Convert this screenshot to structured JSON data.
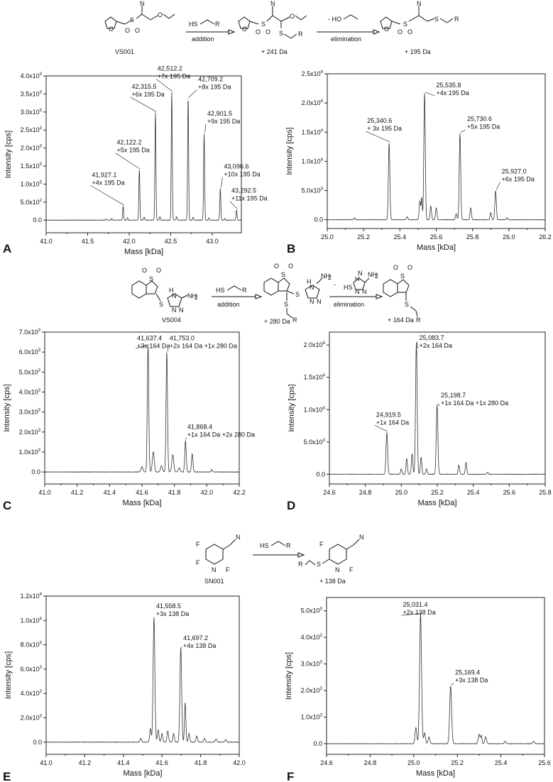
{
  "schemes": [
    {
      "id": "vs001",
      "compound": "VS001",
      "thiol_label": "HS",
      "r_label": "R",
      "step1_label": "addition",
      "step2_reagent": "- HO",
      "step2_label": "elimination",
      "adduct_mass": "+ 241 Da",
      "final_mass": "+ 195 Da"
    },
    {
      "id": "vs004",
      "compound": "VS004",
      "thiol_label": "HS",
      "r_label": "R",
      "step1_label": "addition",
      "step2_reagent": "HS",
      "step2_label": "elimination",
      "adduct_mass": "+ 280 Da",
      "final_mass": "+ 164 Da"
    },
    {
      "id": "sn001",
      "compound": "SN001",
      "thiol_label": "HS",
      "r_label": "R",
      "final_mass": "+ 138 Da"
    }
  ],
  "chart_data": [
    {
      "panel": "A",
      "type": "line",
      "xlabel": "Mass [kDa]",
      "ylabel": "Intensity [cps]",
      "xlim": [
        41.0,
        43.35
      ],
      "ylim": [
        -350,
        4000
      ],
      "xticks": [
        41.0,
        41.5,
        42.0,
        42.5,
        43.0
      ],
      "xtick_labels": [
        "41.0",
        "41.5",
        "42.0",
        "42.5",
        "43.0"
      ],
      "yticks": [
        0,
        500,
        1000,
        1500,
        2000,
        2500,
        3000,
        3500,
        4000
      ],
      "ytick_labels": [
        "0.0",
        "5.0x10",
        "1.0x10",
        "1.5x10",
        "2.0x10",
        "2.5x10",
        "3.0x10",
        "3.5x10",
        "4.0x10"
      ],
      "ytick_exponents": [
        "",
        "2",
        "3",
        "3",
        "3",
        "3",
        "3",
        "3",
        "3"
      ],
      "peaks": [
        {
          "x": 41.927,
          "y": 380,
          "w": 0.006
        },
        {
          "x": 42.122,
          "y": 1380,
          "w": 0.006
        },
        {
          "x": 42.3155,
          "y": 2970,
          "w": 0.006
        },
        {
          "x": 42.512,
          "y": 3530,
          "w": 0.006
        },
        {
          "x": 42.709,
          "y": 3370,
          "w": 0.006
        },
        {
          "x": 42.9015,
          "y": 2380,
          "w": 0.006
        },
        {
          "x": 43.0966,
          "y": 860,
          "w": 0.006
        },
        {
          "x": 43.2925,
          "y": 270,
          "w": 0.006
        },
        {
          "x": 41.72,
          "y": 30,
          "w": 0.006
        },
        {
          "x": 41.79,
          "y": 40,
          "w": 0.006
        },
        {
          "x": 41.98,
          "y": 60,
          "w": 0.006
        },
        {
          "x": 42.18,
          "y": 80,
          "w": 0.006
        },
        {
          "x": 42.37,
          "y": 90,
          "w": 0.006
        },
        {
          "x": 42.57,
          "y": 90,
          "w": 0.006
        },
        {
          "x": 42.77,
          "y": 80,
          "w": 0.006
        },
        {
          "x": 42.96,
          "y": 60,
          "w": 0.006
        },
        {
          "x": 43.15,
          "y": 40,
          "w": 0.006
        }
      ],
      "annotations": [
        {
          "lines": [
            "41,927.1",
            "+4x 195 Da"
          ],
          "x": 41.927,
          "y": 380,
          "tx": 41.55,
          "ty": 1200
        },
        {
          "lines": [
            "42,122.2",
            "+5x 195 Da"
          ],
          "x": 42.122,
          "y": 1380,
          "tx": 41.85,
          "ty": 2100
        },
        {
          "lines": [
            "42,315.5",
            "+6x 195 Da"
          ],
          "x": 42.3155,
          "y": 2970,
          "tx": 42.03,
          "ty": 3650
        },
        {
          "lines": [
            "42,512.2",
            "+7x 195 Da"
          ],
          "x": 42.512,
          "y": 3530,
          "tx": 42.34,
          "ty": 4150
        },
        {
          "lines": [
            "42,709.2",
            "+8x 195 Da"
          ],
          "x": 42.709,
          "y": 3370,
          "tx": 42.83,
          "ty": 3850
        },
        {
          "lines": [
            "42,901.5",
            "+9x 195 Da"
          ],
          "x": 42.9015,
          "y": 2380,
          "tx": 42.94,
          "ty": 2900
        },
        {
          "lines": [
            "43,096.6",
            "+10x 195 Da"
          ],
          "x": 43.0966,
          "y": 860,
          "tx": 43.14,
          "ty": 1430
        },
        {
          "lines": [
            "43,292.5",
            "+11x 195 Da"
          ],
          "x": 43.2925,
          "y": 270,
          "tx": 43.23,
          "ty": 760
        }
      ]
    },
    {
      "panel": "B",
      "type": "line",
      "xlabel": "Mass [kDa]",
      "ylabel": "Intensity [cps]",
      "xlim": [
        25.0,
        26.2
      ],
      "ylim": [
        -1500,
        25000
      ],
      "xticks": [
        25.0,
        25.2,
        25.4,
        25.6,
        25.8,
        26.0,
        26.2
      ],
      "xtick_labels": [
        "25.0",
        "25.2",
        "25.4",
        "25.6",
        "25.8",
        "26.0",
        "26.2"
      ],
      "yticks": [
        0,
        5000,
        10000,
        15000,
        20000,
        25000
      ],
      "ytick_labels": [
        "0.0",
        "5.0x10",
        "1.0x10",
        "1.5x10",
        "2.0x10",
        "2.5x10"
      ],
      "ytick_exponents": [
        "",
        "3",
        "4",
        "4",
        "4",
        "4"
      ],
      "peaks": [
        {
          "x": 25.3406,
          "y": 13100,
          "w": 0.004
        },
        {
          "x": 25.5358,
          "y": 21600,
          "w": 0.004
        },
        {
          "x": 25.7306,
          "y": 14700,
          "w": 0.004
        },
        {
          "x": 25.927,
          "y": 4900,
          "w": 0.004
        },
        {
          "x": 25.15,
          "y": 300,
          "w": 0.004
        },
        {
          "x": 25.44,
          "y": 500,
          "w": 0.004
        },
        {
          "x": 25.51,
          "y": 3200,
          "w": 0.004
        },
        {
          "x": 25.52,
          "y": 3700,
          "w": 0.003
        },
        {
          "x": 25.57,
          "y": 2300,
          "w": 0.004
        },
        {
          "x": 25.6,
          "y": 2000,
          "w": 0.004
        },
        {
          "x": 25.71,
          "y": 1000,
          "w": 0.004
        },
        {
          "x": 25.79,
          "y": 2000,
          "w": 0.004
        },
        {
          "x": 25.9,
          "y": 1200,
          "w": 0.004
        },
        {
          "x": 25.99,
          "y": 300,
          "w": 0.004
        }
      ],
      "annotations": [
        {
          "lines": [
            "25,340.6",
            "+ 3x 195 Da"
          ],
          "x": 25.3406,
          "y": 13100,
          "tx": 25.22,
          "ty": 16600
        },
        {
          "lines": [
            "25,535.8",
            "+4x 195 Da"
          ],
          "x": 25.5358,
          "y": 21600,
          "tx": 25.6,
          "ty": 22700
        },
        {
          "lines": [
            "25,730.6",
            "+5x 195 Da"
          ],
          "x": 25.7306,
          "y": 14700,
          "tx": 25.77,
          "ty": 16900
        },
        {
          "lines": [
            "25,927.0",
            "+6x 195 Da"
          ],
          "x": 25.927,
          "y": 4900,
          "tx": 25.96,
          "ty": 7900
        }
      ]
    },
    {
      "panel": "C",
      "type": "line",
      "xlabel": "Mass [kDa]",
      "ylabel": "Intensity [cps]",
      "xlim": [
        41.0,
        42.2
      ],
      "ylim": [
        -600,
        7000
      ],
      "xticks": [
        41.0,
        41.2,
        41.4,
        41.6,
        41.8,
        42.0,
        42.2
      ],
      "xtick_labels": [
        "41.0",
        "41.2",
        "41.4",
        "41.6",
        "41.8",
        "42.0",
        "42.2"
      ],
      "yticks": [
        0,
        1000,
        2000,
        3000,
        4000,
        5000,
        6000,
        7000
      ],
      "ytick_labels": [
        "0.0",
        "1.0x10",
        "2.0x10",
        "3.0x10",
        "4.0x10",
        "5.0x10",
        "6.0x10",
        "7.0x10"
      ],
      "ytick_exponents": [
        "",
        "3",
        "3",
        "3",
        "3",
        "3",
        "3",
        "3"
      ],
      "peaks": [
        {
          "x": 41.6374,
          "y": 6300,
          "w": 0.0045
        },
        {
          "x": 41.753,
          "y": 5950,
          "w": 0.0045
        },
        {
          "x": 41.8684,
          "y": 1550,
          "w": 0.0045
        },
        {
          "x": 41.91,
          "y": 900,
          "w": 0.0045
        },
        {
          "x": 41.67,
          "y": 1000,
          "w": 0.006
        },
        {
          "x": 41.79,
          "y": 850,
          "w": 0.006
        },
        {
          "x": 41.6,
          "y": 250,
          "w": 0.006
        },
        {
          "x": 41.72,
          "y": 300,
          "w": 0.006
        },
        {
          "x": 41.83,
          "y": 200,
          "w": 0.006
        },
        {
          "x": 42.03,
          "y": 120,
          "w": 0.004
        }
      ],
      "annotations": [
        {
          "lines": [
            "41,637.4",
            "+3x 164 Da"
          ],
          "x": 41.6374,
          "y": 6300,
          "tx": 41.57,
          "ty": 6600
        },
        {
          "lines": [
            "41,753.0",
            "+2x 164 Da +1x 280 Da"
          ],
          "x": 41.753,
          "y": 5950,
          "tx": 41.77,
          "ty": 6600
        },
        {
          "lines": [
            "41,868.4",
            "+1x 164 Da +2x 280 Da"
          ],
          "x": 41.8684,
          "y": 1550,
          "tx": 41.88,
          "ty": 2150
        }
      ]
    },
    {
      "panel": "D",
      "type": "line",
      "xlabel": "Mass [kDa]",
      "ylabel": "Intensity [cps]",
      "xlim": [
        24.6,
        25.8
      ],
      "ylim": [
        -1500,
        22000
      ],
      "xticks": [
        24.6,
        24.8,
        25.0,
        25.2,
        25.4,
        25.6,
        25.8
      ],
      "xtick_labels": [
        "24.6",
        "24.8",
        "25.0",
        "25.2",
        "25.4",
        "25.6",
        "25.8"
      ],
      "yticks": [
        0,
        5000,
        10000,
        15000,
        20000
      ],
      "ytick_labels": [
        "0.0",
        "5.0x10",
        "1.0x10",
        "1.5x10",
        "2.0x10"
      ],
      "ytick_exponents": [
        "",
        "3",
        "4",
        "4",
        "4"
      ],
      "peaks": [
        {
          "x": 24.9195,
          "y": 6400,
          "w": 0.0045
        },
        {
          "x": 25.0837,
          "y": 20300,
          "w": 0.0045
        },
        {
          "x": 25.1987,
          "y": 10700,
          "w": 0.0045
        },
        {
          "x": 25.0,
          "y": 800,
          "w": 0.004
        },
        {
          "x": 25.03,
          "y": 2400,
          "w": 0.004
        },
        {
          "x": 25.06,
          "y": 3100,
          "w": 0.004
        },
        {
          "x": 25.11,
          "y": 2600,
          "w": 0.004
        },
        {
          "x": 25.14,
          "y": 800,
          "w": 0.004
        },
        {
          "x": 25.32,
          "y": 1400,
          "w": 0.004
        },
        {
          "x": 25.36,
          "y": 1800,
          "w": 0.004
        },
        {
          "x": 25.48,
          "y": 300,
          "w": 0.004
        }
      ],
      "annotations": [
        {
          "lines": [
            "25,083.7",
            "+2x 164 Da"
          ],
          "x": 25.0837,
          "y": 20300,
          "tx": 25.1,
          "ty": 20800
        },
        {
          "lines": [
            "25,198.7",
            "+1x 164 Da +1x 280 Da"
          ],
          "x": 25.1987,
          "y": 10700,
          "tx": 25.22,
          "ty": 11900
        },
        {
          "lines": [
            "24,919.5",
            "+1x 164 Da"
          ],
          "x": 24.9195,
          "y": 6400,
          "tx": 24.86,
          "ty": 8900
        }
      ]
    },
    {
      "panel": "E",
      "type": "line",
      "xlabel": "Mass [kDa]",
      "ylabel": "Intensity [cps]",
      "xlim": [
        41.0,
        42.0
      ],
      "ylim": [
        -1000,
        12000
      ],
      "xticks": [
        41.0,
        41.2,
        41.4,
        41.6,
        41.8,
        42.0
      ],
      "xtick_labels": [
        "41.0",
        "41.2",
        "41.4",
        "41.6",
        "41.8",
        "42.0"
      ],
      "yticks": [
        0,
        2000,
        4000,
        6000,
        8000,
        10000,
        12000
      ],
      "ytick_labels": [
        "0.0",
        "2.0x10",
        "4.0x10",
        "6.0x10",
        "8.0x10",
        "1.0x10",
        "1.2x10"
      ],
      "ytick_exponents": [
        "",
        "3",
        "3",
        "3",
        "3",
        "4",
        "4"
      ],
      "peaks": [
        {
          "x": 41.5585,
          "y": 10200,
          "w": 0.0045
        },
        {
          "x": 41.6972,
          "y": 7700,
          "w": 0.0045
        },
        {
          "x": 41.72,
          "y": 3200,
          "w": 0.0035
        },
        {
          "x": 41.54,
          "y": 1100,
          "w": 0.004
        },
        {
          "x": 41.58,
          "y": 1000,
          "w": 0.004
        },
        {
          "x": 41.6,
          "y": 700,
          "w": 0.004
        },
        {
          "x": 41.63,
          "y": 900,
          "w": 0.004
        },
        {
          "x": 41.66,
          "y": 700,
          "w": 0.004
        },
        {
          "x": 41.74,
          "y": 700,
          "w": 0.004
        },
        {
          "x": 41.78,
          "y": 500,
          "w": 0.004
        },
        {
          "x": 41.82,
          "y": 300,
          "w": 0.004
        },
        {
          "x": 41.88,
          "y": 250,
          "w": 0.004
        },
        {
          "x": 41.49,
          "y": 300,
          "w": 0.004
        },
        {
          "x": 41.93,
          "y": 200,
          "w": 0.004
        }
      ],
      "annotations": [
        {
          "lines": [
            "41,558.5",
            "+3x 138 Da"
          ],
          "x": 41.5585,
          "y": 10200,
          "tx": 41.57,
          "ty": 11000
        },
        {
          "lines": [
            "41,697.2",
            "+4x 138 Da"
          ],
          "x": 41.6972,
          "y": 7700,
          "tx": 41.71,
          "ty": 8400
        }
      ]
    },
    {
      "panel": "F",
      "type": "line",
      "xlabel": "Mass [kDa]",
      "ylabel": "Intensity [cps]",
      "xlim": [
        24.6,
        25.6
      ],
      "ylim": [
        -400,
        5500
      ],
      "xticks": [
        24.6,
        24.8,
        25.0,
        25.2,
        25.4,
        25.6
      ],
      "xtick_labels": [
        "24.6",
        "24.8",
        "25.0",
        "25.2",
        "25.4",
        "25.6"
      ],
      "yticks": [
        0,
        1000,
        2000,
        3000,
        4000,
        5000
      ],
      "ytick_labels": [
        "0.0",
        "1.0x10",
        "2.0x10",
        "3.0x10",
        "4.0x10",
        "5.0x10"
      ],
      "ytick_exponents": [
        "",
        "3",
        "3",
        "3",
        "3",
        "3"
      ],
      "peaks": [
        {
          "x": 25.0314,
          "y": 4850,
          "w": 0.0045
        },
        {
          "x": 25.1694,
          "y": 2150,
          "w": 0.0045
        },
        {
          "x": 25.01,
          "y": 600,
          "w": 0.004
        },
        {
          "x": 25.05,
          "y": 400,
          "w": 0.004
        },
        {
          "x": 25.07,
          "y": 250,
          "w": 0.004
        },
        {
          "x": 25.3,
          "y": 350,
          "w": 0.004
        },
        {
          "x": 25.31,
          "y": 300,
          "w": 0.003
        },
        {
          "x": 25.33,
          "y": 250,
          "w": 0.004
        },
        {
          "x": 25.42,
          "y": 80,
          "w": 0.004
        },
        {
          "x": 25.55,
          "y": 80,
          "w": 0.004
        }
      ],
      "annotations": [
        {
          "lines": [
            "25,031.4",
            "+2x 138 Da"
          ],
          "x": 25.0314,
          "y": 4850,
          "tx": 24.95,
          "ty": 5150
        },
        {
          "lines": [
            "25,169.4",
            "+3x 138 Da"
          ],
          "x": 25.1694,
          "y": 2150,
          "tx": 25.19,
          "ty": 2600
        }
      ]
    }
  ]
}
